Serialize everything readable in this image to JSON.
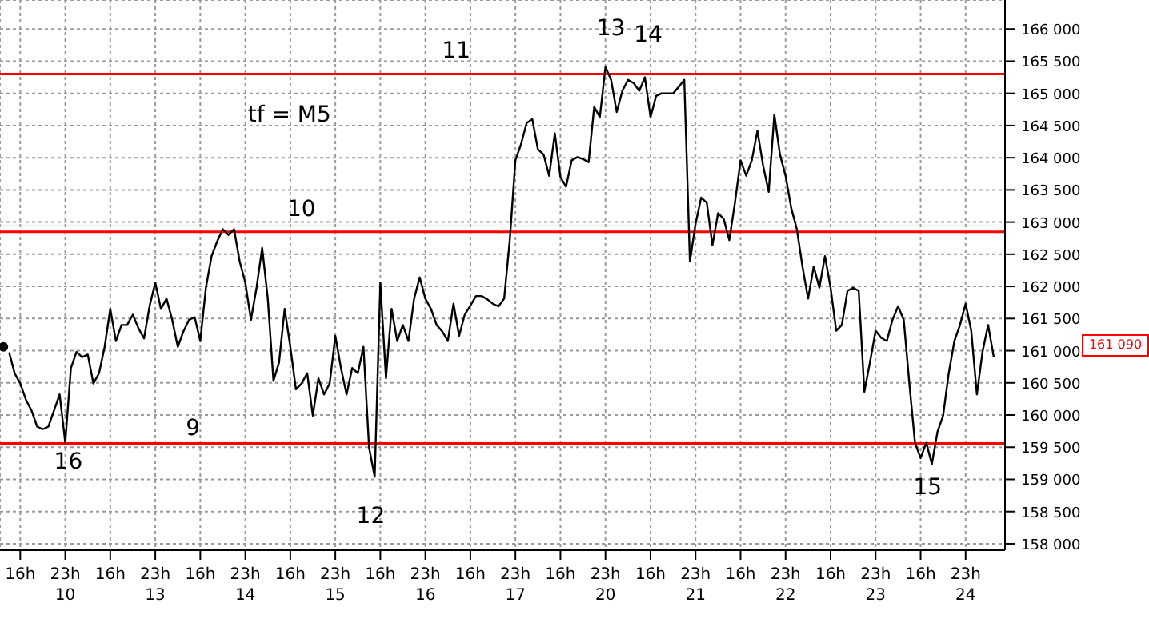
{
  "chart_data": {
    "type": "line",
    "categories": [
      null,
      null,
      null,
      "16h",
      null,
      null,
      null,
      null,
      null,
      null,
      null,
      "23h\n10",
      null,
      null,
      null,
      null,
      null,
      null,
      null,
      "16h",
      null,
      null,
      null,
      null,
      null,
      null,
      null,
      "23h\n13",
      null,
      null,
      null,
      null,
      null,
      null,
      null,
      "16h",
      null,
      null,
      null,
      null,
      null,
      null,
      null,
      "23h\n14",
      null,
      null,
      null,
      null,
      null,
      null,
      null,
      "16h",
      null,
      null,
      null,
      null,
      null,
      null,
      null,
      "23h\n15",
      null,
      null,
      null,
      null,
      null,
      null,
      null,
      "16h",
      null,
      null,
      null,
      null,
      null,
      null,
      null,
      "23h\n16",
      null,
      null,
      null,
      null,
      null,
      null,
      null,
      "16h",
      null,
      null,
      null,
      null,
      null,
      null,
      null,
      "23h\n17",
      null,
      null,
      null,
      null,
      null,
      null,
      null,
      "16h",
      null,
      null,
      null,
      null,
      null,
      null,
      null,
      "23h\n20",
      null,
      null,
      null,
      null,
      null,
      null,
      null,
      "16h",
      null,
      null,
      null,
      null,
      null,
      null,
      null,
      "23h\n21",
      null,
      null,
      null,
      null,
      null,
      null,
      null,
      "16h",
      null,
      null,
      null,
      null,
      null,
      null,
      null,
      "23h\n22",
      null,
      null,
      null,
      null,
      null,
      null,
      null,
      "16h",
      null,
      null,
      null,
      null,
      null,
      null,
      null,
      "23h\n23",
      null,
      null,
      null,
      null,
      null,
      null,
      null,
      "16h",
      null,
      null,
      null,
      null,
      null,
      null,
      null,
      "23h\n24",
      null,
      null,
      null,
      null,
      null,
      null,
      null
    ],
    "series": [
      {
        "color": "#000000",
        "values": [
          161060,
          160980,
          160650,
          160490,
          160240,
          160070,
          159820,
          159780,
          159820,
          160070,
          160320,
          159570,
          160730,
          160980,
          160900,
          160940,
          160490,
          160650,
          161060,
          161650,
          161150,
          161400,
          161400,
          161560,
          161350,
          161190,
          161700,
          162060,
          161650,
          161810,
          161480,
          161060,
          161300,
          161480,
          161520,
          161150,
          161980,
          162470,
          162700,
          162890,
          162800,
          162890,
          162390,
          162060,
          161480,
          161980,
          162600,
          161810,
          160530,
          160820,
          161650,
          161060,
          160400,
          160490,
          160650,
          159990,
          160570,
          160320,
          160490,
          161230,
          160730,
          160320,
          160730,
          160650,
          161060,
          159490,
          159040,
          162060,
          160570,
          161650,
          161150,
          161400,
          161150,
          161810,
          162140,
          161810,
          161650,
          161400,
          161300,
          161150,
          161730,
          161230,
          161560,
          161700,
          161850,
          161850,
          161800,
          161730,
          161690,
          161810,
          162720,
          163960,
          164210,
          164540,
          164600,
          164130,
          164050,
          163720,
          164380,
          163700,
          163550,
          163960,
          164010,
          163980,
          163930,
          164790,
          164630,
          165410,
          165210,
          164710,
          165040,
          165210,
          165160,
          165040,
          165250,
          164630,
          164960,
          165000,
          165000,
          165000,
          165100,
          165210,
          162390,
          162970,
          163380,
          163300,
          162640,
          163140,
          163050,
          162720,
          163300,
          163960,
          163720,
          163960,
          164420,
          163880,
          163470,
          164670,
          164050,
          163720,
          163220,
          162890,
          162310,
          161810,
          162310,
          161980,
          162470,
          161980,
          161310,
          161400,
          161930,
          161980,
          161930,
          160360,
          160820,
          161310,
          161200,
          161150,
          161480,
          161690,
          161480,
          160490,
          159570,
          159330,
          159570,
          159240,
          159740,
          159990,
          160650,
          161150,
          161400,
          161730,
          161310,
          160320,
          160980,
          161400,
          160900,
          null,
          null
        ]
      }
    ],
    "ylim": [
      157900,
      166450
    ],
    "yticks": [
      {
        "value": 158000,
        "label": "158 000"
      },
      {
        "value": 158500,
        "label": "158 500"
      },
      {
        "value": 159000,
        "label": "159 000"
      },
      {
        "value": 159500,
        "label": "159 500"
      },
      {
        "value": 160000,
        "label": "160 000"
      },
      {
        "value": 160500,
        "label": "160 500"
      },
      {
        "value": 161000,
        "label": "161 000"
      },
      {
        "value": 161500,
        "label": "161 500"
      },
      {
        "value": 162000,
        "label": "162 000"
      },
      {
        "value": 162500,
        "label": "162 500"
      },
      {
        "value": 163000,
        "label": "163 000"
      },
      {
        "value": 163500,
        "label": "163 500"
      },
      {
        "value": 164000,
        "label": "164 000"
      },
      {
        "value": 164500,
        "label": "164 500"
      },
      {
        "value": 165000,
        "label": "165 000"
      },
      {
        "value": 165500,
        "label": "165 500"
      },
      {
        "value": 166000,
        "label": "166 000"
      }
    ],
    "grid": true,
    "ref_lines": [
      {
        "axis": "y",
        "value": 165300,
        "color": "#ff0000"
      },
      {
        "axis": "y",
        "value": 162850,
        "color": "#ff0000"
      },
      {
        "axis": "y",
        "value": 159560,
        "color": "#ff0000"
      }
    ],
    "annotations": [
      "11",
      "tf = M5",
      "10",
      "13",
      "14",
      "9",
      "16",
      "12",
      "15",
      "161 090"
    ]
  }
}
